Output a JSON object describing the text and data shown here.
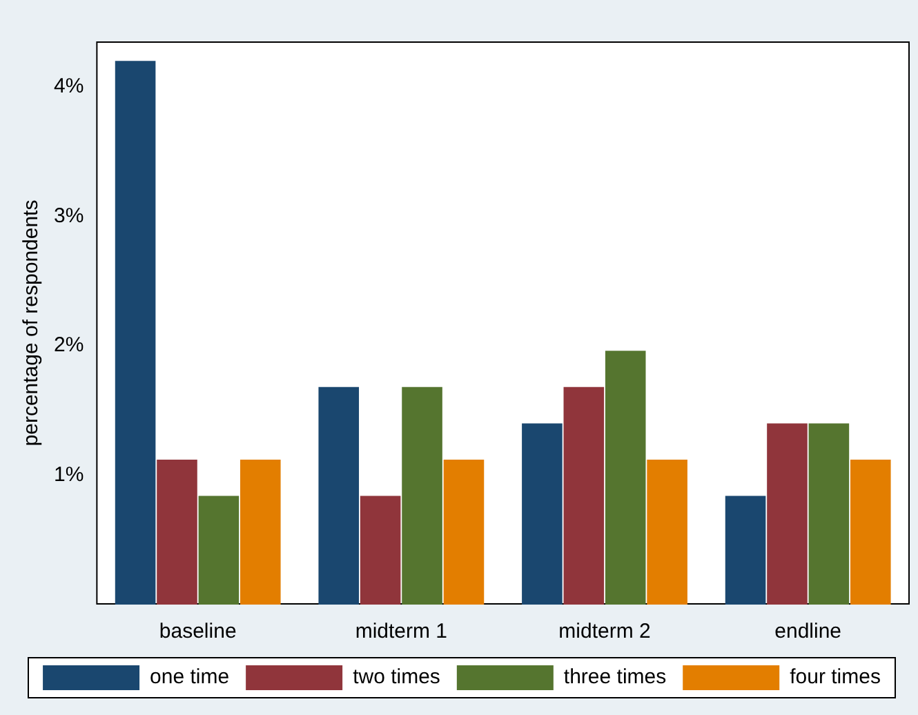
{
  "chart_data": {
    "type": "bar",
    "ylabel": "percentage of respondents",
    "categories": [
      "baseline",
      "midterm 1",
      "midterm 2",
      "endline"
    ],
    "series": [
      {
        "name": "one time",
        "color": "#1a476f",
        "values": [
          4.2,
          1.68,
          1.4,
          0.84
        ]
      },
      {
        "name": "two times",
        "color": "#90353b",
        "values": [
          1.12,
          0.84,
          1.68,
          1.4
        ]
      },
      {
        "name": "three times",
        "color": "#55752f",
        "values": [
          0.84,
          1.68,
          1.96,
          1.4
        ]
      },
      {
        "name": "four times",
        "color": "#e37e00",
        "values": [
          1.12,
          1.12,
          1.12,
          1.12
        ]
      }
    ],
    "ylim": [
      0,
      4.35
    ],
    "yticks": [
      {
        "value": 1,
        "label": "1%"
      },
      {
        "value": 2,
        "label": "2%"
      },
      {
        "value": 3,
        "label": "3%"
      },
      {
        "value": 4,
        "label": "4%"
      }
    ],
    "grid": false,
    "legend": "bottom"
  }
}
